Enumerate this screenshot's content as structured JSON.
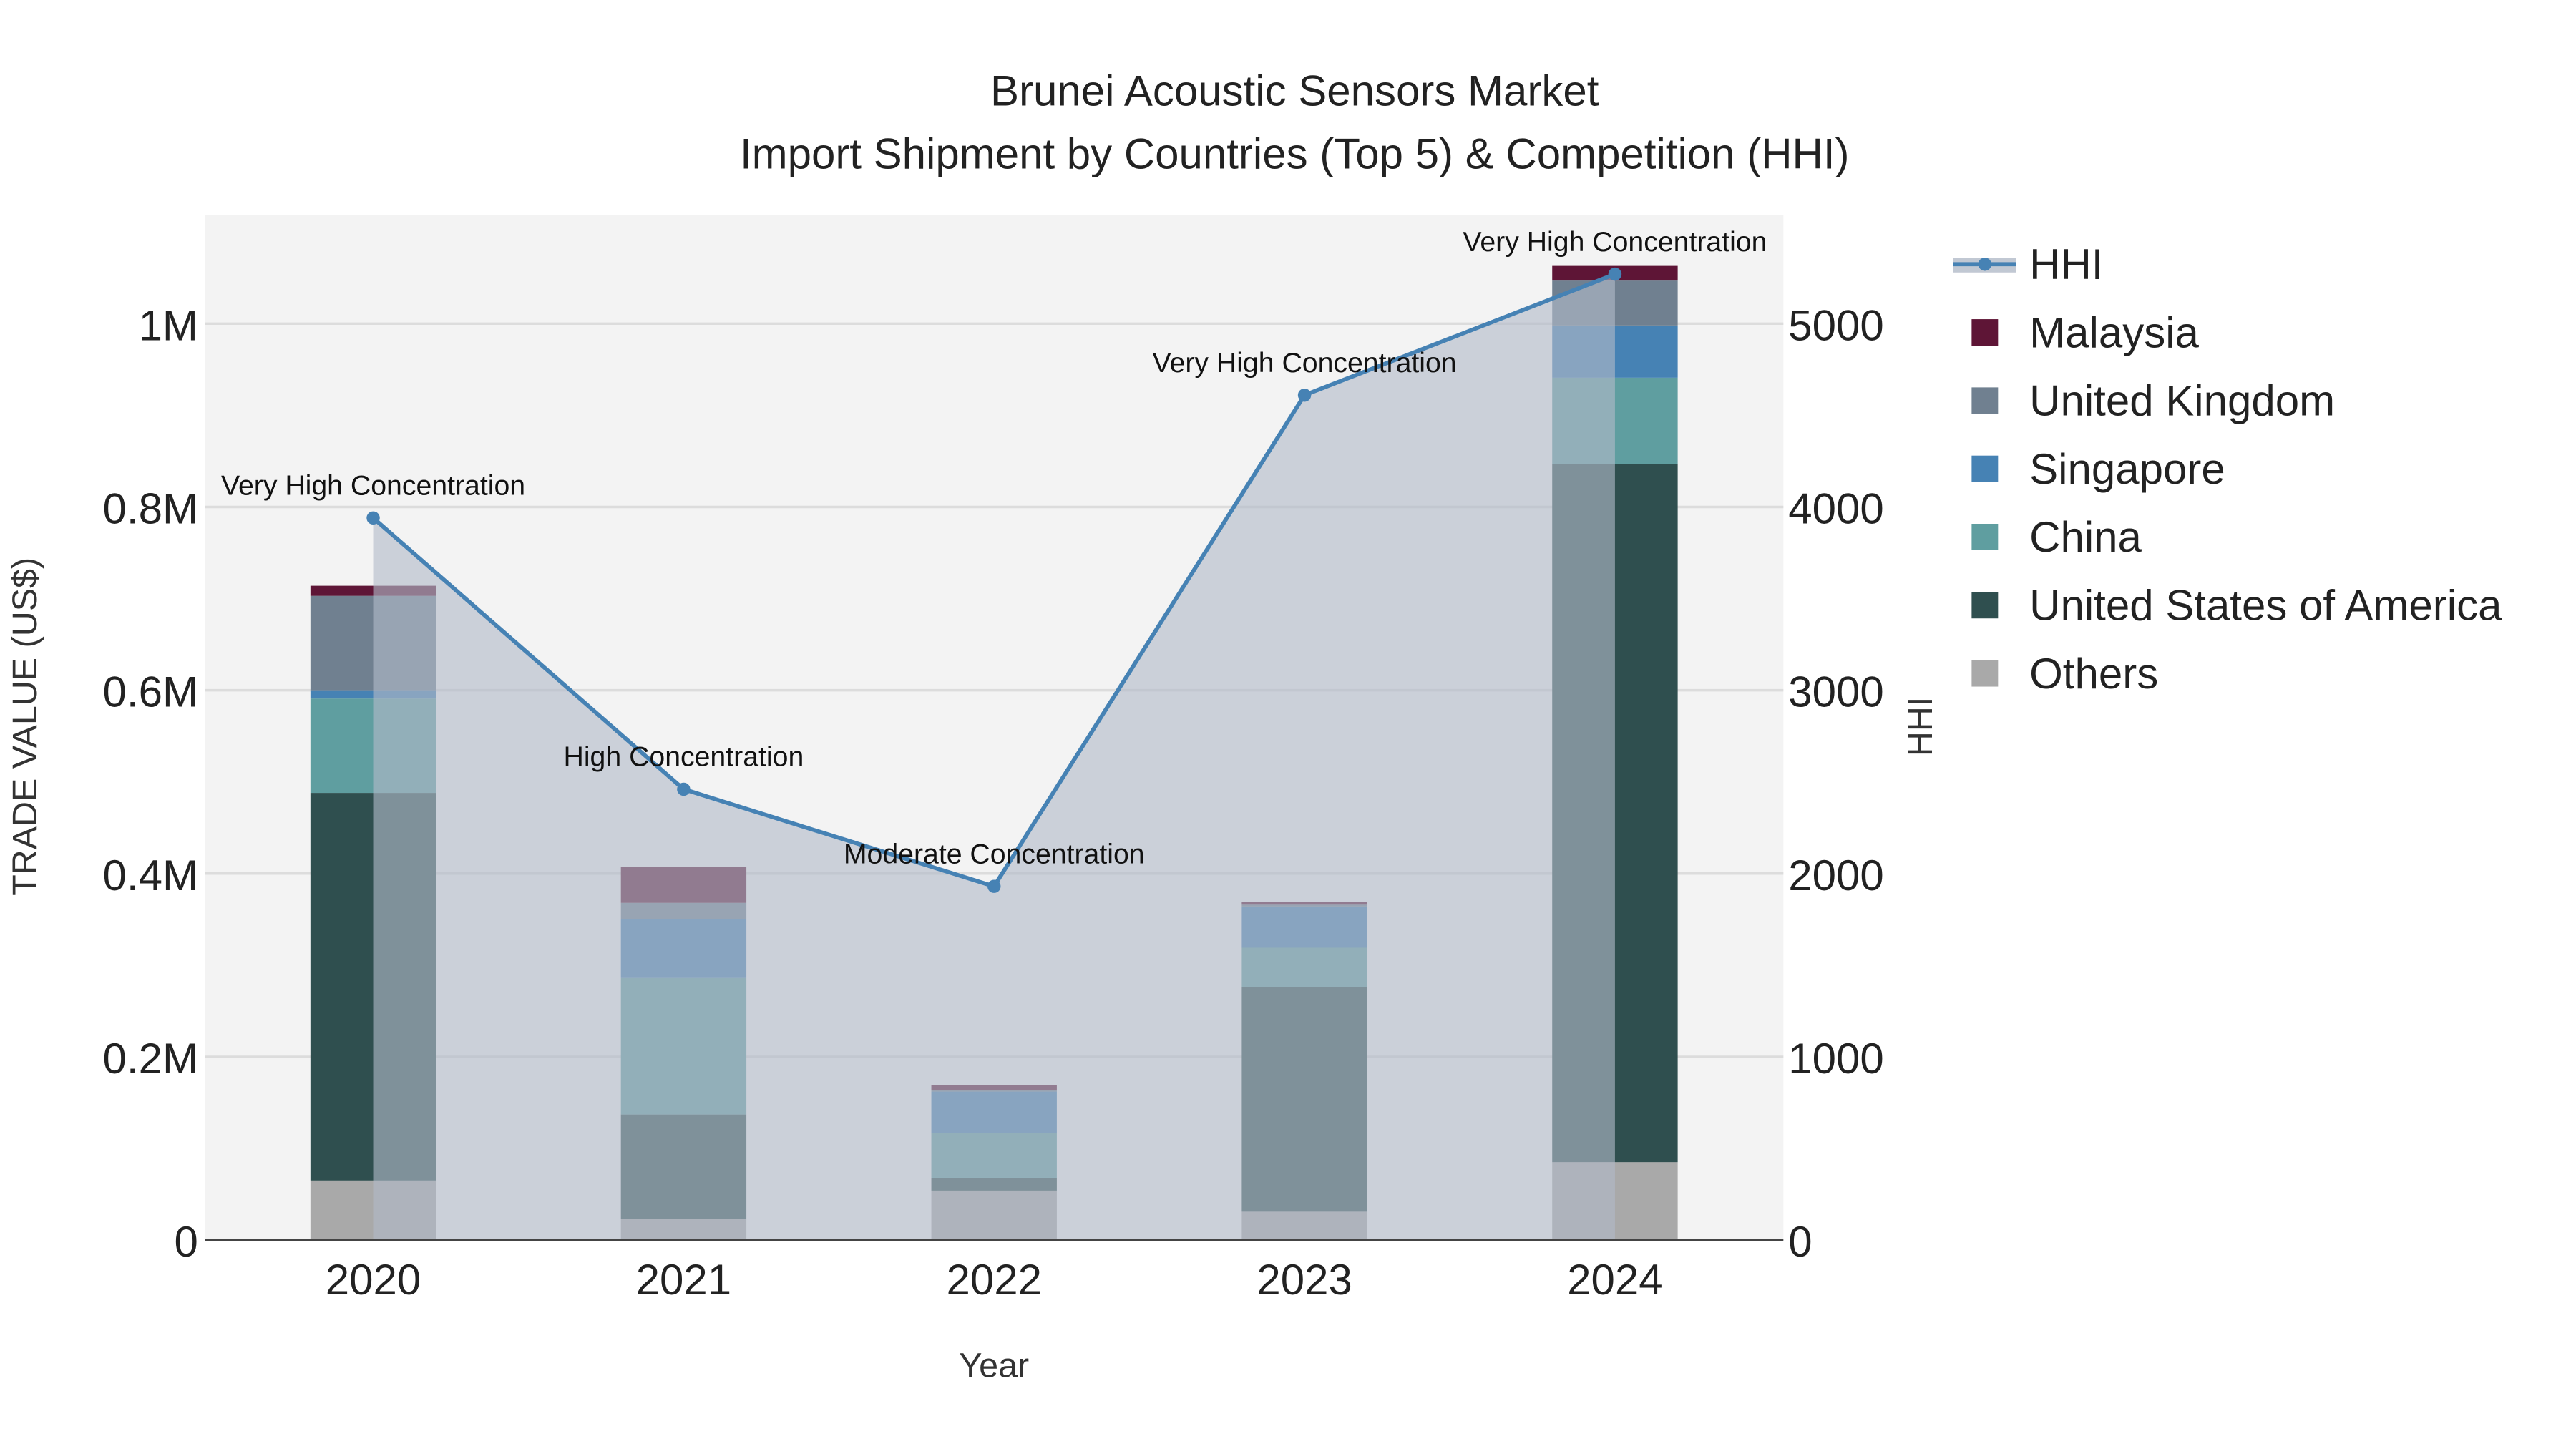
{
  "chart_data": {
    "type": "bar",
    "stacked": true,
    "title": "Brunei Acoustic Sensors Market",
    "subtitle": "Import Shipment by Countries (Top 5) & Competition (HHI)",
    "xlabel": "Year",
    "ylabel": "TRADE VALUE (US$)",
    "y2label": "HHI",
    "categories": [
      "2020",
      "2021",
      "2022",
      "2023",
      "2024"
    ],
    "ylim": [
      0,
      1.11
    ],
    "y2lim": [
      0,
      5550
    ],
    "yticks": [
      {
        "v": 0,
        "label": "0"
      },
      {
        "v": 0.2,
        "label": "0.2M"
      },
      {
        "v": 0.4,
        "label": "0.4M"
      },
      {
        "v": 0.6,
        "label": "0.6M"
      },
      {
        "v": 0.8,
        "label": "0.8M"
      },
      {
        "v": 1.0,
        "label": "1M"
      }
    ],
    "y2ticks": [
      {
        "v": 0,
        "label": "0"
      },
      {
        "v": 1000,
        "label": "1000"
      },
      {
        "v": 2000,
        "label": "2000"
      },
      {
        "v": 3000,
        "label": "3000"
      },
      {
        "v": 4000,
        "label": "4000"
      },
      {
        "v": 5000,
        "label": "5000"
      }
    ],
    "value_unit": "million US$",
    "series": [
      {
        "name": "Others",
        "color": "#a9a9a9",
        "values": [
          0.065,
          0.023,
          0.054,
          0.031,
          0.085
        ]
      },
      {
        "name": "United States of America",
        "color": "#2f4f4f",
        "values": [
          0.423,
          0.114,
          0.014,
          0.245,
          0.762
        ]
      },
      {
        "name": "China",
        "color": "#5f9ea0",
        "values": [
          0.103,
          0.149,
          0.049,
          0.043,
          0.094
        ]
      },
      {
        "name": "Singapore",
        "color": "#4682b4",
        "values": [
          0.009,
          0.064,
          0.045,
          0.045,
          0.057
        ]
      },
      {
        "name": "United Kingdom",
        "color": "#708090",
        "values": [
          0.103,
          0.018,
          0.002,
          0.002,
          0.049
        ]
      },
      {
        "name": "Malaysia",
        "color": "#5e1536",
        "values": [
          0.011,
          0.039,
          0.005,
          0.003,
          0.016
        ]
      }
    ],
    "line": {
      "name": "HHI",
      "color": "#4682b4",
      "values": [
        3940,
        2460,
        1930,
        4610,
        5270
      ],
      "annotations": [
        "Very High Concentration",
        "High Concentration",
        "Moderate Concentration",
        "Very High Concentration",
        "Very High Concentration"
      ]
    },
    "legend": {
      "placement": "right",
      "order": [
        "HHI",
        "Malaysia",
        "United Kingdom",
        "Singapore",
        "China",
        "United States of America",
        "Others"
      ]
    },
    "grid": true
  }
}
